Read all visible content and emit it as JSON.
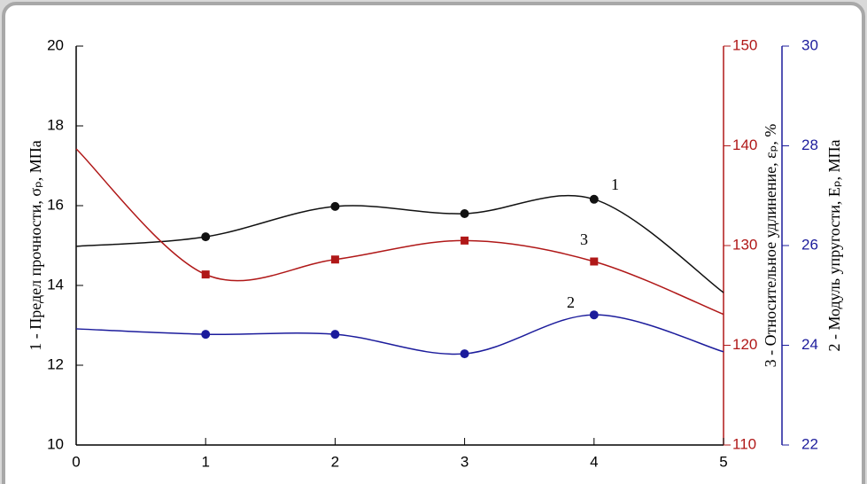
{
  "chart_data": {
    "type": "line",
    "x": [
      0,
      1,
      2,
      3,
      4,
      5
    ],
    "xlim": [
      0,
      5
    ],
    "xticks": [
      0,
      1,
      2,
      3,
      4,
      5
    ],
    "ylim": [
      10,
      20
    ],
    "yticks": [
      10,
      12,
      14,
      16,
      18,
      20
    ],
    "y_label": "1 - Предел прочности, σₚ, МПа",
    "y2lim": [
      110,
      150
    ],
    "y2ticks": [
      110,
      120,
      130,
      140,
      150
    ],
    "y2_label": "3 - Относительное удлинение, εₚ, %",
    "y3lim": [
      22,
      30
    ],
    "y3ticks": [
      22,
      24,
      26,
      28,
      30
    ],
    "y3_label": "2 - Модуль упругости, Eₚ, МПа",
    "series": [
      {
        "name": "1",
        "color": "#111111",
        "axis": "y",
        "marker": "circle",
        "values": [
          14.98,
          15.22,
          15.98,
          15.8,
          16.16,
          13.82
        ],
        "markers": [
          false,
          true,
          true,
          true,
          true,
          false
        ]
      },
      {
        "name": "3",
        "color": "#b01818",
        "axis": "y2",
        "marker": "square",
        "values": [
          139.7,
          127.1,
          128.6,
          130.5,
          128.4,
          123.1
        ],
        "markers": [
          false,
          true,
          true,
          true,
          true,
          false
        ]
      },
      {
        "name": "2",
        "color": "#1c1c9c",
        "axis": "y3",
        "marker": "circle",
        "values": [
          24.33,
          24.22,
          24.22,
          23.83,
          24.61,
          23.87
        ],
        "markers": [
          false,
          true,
          true,
          true,
          true,
          false
        ]
      }
    ]
  }
}
